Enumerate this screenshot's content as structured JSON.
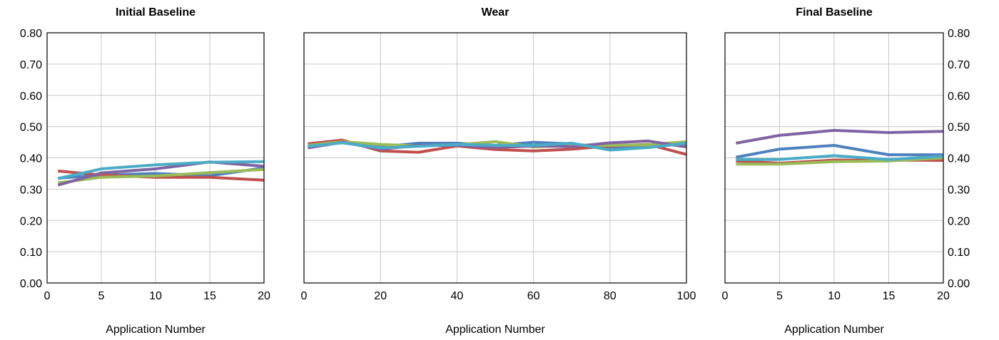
{
  "chart_data": [
    {
      "type": "line",
      "title": "Initial Baseline",
      "xlabel": "Application Number",
      "ylabel": "",
      "xlim": [
        0,
        20
      ],
      "ylim": [
        0,
        0.8
      ],
      "xticks": [
        "0",
        "5",
        "10",
        "15",
        "20"
      ],
      "yticks": [
        "0.00",
        "0.10",
        "0.20",
        "0.30",
        "0.40",
        "0.50",
        "0.60",
        "0.70",
        "0.80"
      ],
      "grid": true,
      "x": [
        1,
        5,
        10,
        15,
        20
      ],
      "series": [
        {
          "color": "#4f81bd",
          "values": [
            0.335,
            0.345,
            0.35,
            0.343,
            0.368
          ]
        },
        {
          "color": "#c0504d",
          "values": [
            0.358,
            0.345,
            0.338,
            0.338,
            0.329
          ]
        },
        {
          "color": "#9bbb59",
          "values": [
            0.32,
            0.338,
            0.342,
            0.353,
            0.363
          ]
        },
        {
          "color": "#8064a2",
          "values": [
            0.313,
            0.352,
            0.365,
            0.387,
            0.373
          ]
        },
        {
          "color": "#4bacc6",
          "values": [
            0.334,
            0.365,
            0.378,
            0.386,
            0.388
          ]
        }
      ]
    },
    {
      "type": "line",
      "title": "Wear",
      "xlabel": "Application Number",
      "ylabel": "",
      "xlim": [
        0,
        100
      ],
      "ylim": [
        0,
        0.8
      ],
      "xticks": [
        "0",
        "20",
        "40",
        "60",
        "80",
        "100"
      ],
      "yticks": [],
      "grid": true,
      "x": [
        1,
        10,
        20,
        30,
        40,
        50,
        60,
        70,
        80,
        90,
        100
      ],
      "series": [
        {
          "color": "#4f81bd",
          "values": [
            0.44,
            0.45,
            0.435,
            0.447,
            0.447,
            0.44,
            0.45,
            0.445,
            0.432,
            0.438,
            0.443
          ]
        },
        {
          "color": "#c0504d",
          "values": [
            0.445,
            0.457,
            0.422,
            0.418,
            0.438,
            0.427,
            0.422,
            0.428,
            0.438,
            0.443,
            0.411
          ]
        },
        {
          "color": "#9bbb59",
          "values": [
            0.44,
            0.452,
            0.443,
            0.438,
            0.442,
            0.452,
            0.435,
            0.44,
            0.44,
            0.442,
            0.452
          ]
        },
        {
          "color": "#8064a2",
          "values": [
            0.432,
            0.45,
            0.428,
            0.44,
            0.44,
            0.433,
            0.438,
            0.436,
            0.448,
            0.454,
            0.435
          ]
        },
        {
          "color": "#4bacc6",
          "values": [
            0.437,
            0.448,
            0.432,
            0.437,
            0.443,
            0.44,
            0.44,
            0.447,
            0.425,
            0.433,
            0.447
          ]
        }
      ]
    },
    {
      "type": "line",
      "title": "Final Baseline",
      "xlabel": "Application Number",
      "ylabel": "",
      "xlim": [
        0,
        20
      ],
      "ylim": [
        0,
        0.8
      ],
      "xticks": [
        "0",
        "5",
        "10",
        "15",
        "20"
      ],
      "yticks": [
        "0.00",
        "0.10",
        "0.20",
        "0.30",
        "0.40",
        "0.50",
        "0.60",
        "0.70",
        "0.80"
      ],
      "yaxis_side": "right",
      "grid": true,
      "x": [
        1,
        5,
        10,
        15,
        20
      ],
      "series": [
        {
          "color": "#4f81bd",
          "values": [
            0.402,
            0.428,
            0.44,
            0.41,
            0.41
          ]
        },
        {
          "color": "#c0504d",
          "values": [
            0.39,
            0.383,
            0.393,
            0.393,
            0.392
          ]
        },
        {
          "color": "#9bbb59",
          "values": [
            0.38,
            0.38,
            0.388,
            0.39,
            0.4
          ]
        },
        {
          "color": "#8064a2",
          "values": [
            0.447,
            0.472,
            0.488,
            0.481,
            0.485
          ]
        },
        {
          "color": "#4bacc6",
          "values": [
            0.395,
            0.395,
            0.407,
            0.395,
            0.405
          ]
        }
      ]
    }
  ]
}
